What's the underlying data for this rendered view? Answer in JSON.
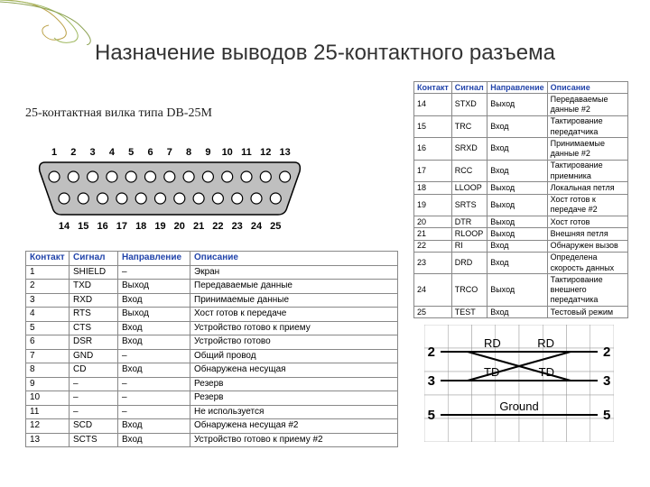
{
  "title": "Назначение выводов 25-контактного разъема",
  "subtitle": "25-контактная вилка типа DB-25M",
  "headers": {
    "pin": "Контакт",
    "sig": "Сигнал",
    "dir": "Направление",
    "desc": "Описание"
  },
  "left_rows": [
    {
      "pin": "1",
      "sig": "SHIELD",
      "dir": "–",
      "desc": "Экран"
    },
    {
      "pin": "2",
      "sig": "TXD",
      "dir": "Выход",
      "desc": "Передаваемые данные"
    },
    {
      "pin": "3",
      "sig": "RXD",
      "dir": "Вход",
      "desc": "Принимаемые данные"
    },
    {
      "pin": "4",
      "sig": "RTS",
      "dir": "Выход",
      "desc": "Хост готов к передаче"
    },
    {
      "pin": "5",
      "sig": "CTS",
      "dir": "Вход",
      "desc": "Устройство готово к приему"
    },
    {
      "pin": "6",
      "sig": "DSR",
      "dir": "Вход",
      "desc": "Устройство готово"
    },
    {
      "pin": "7",
      "sig": "GND",
      "dir": "–",
      "desc": "Общий провод"
    },
    {
      "pin": "8",
      "sig": "CD",
      "dir": "Вход",
      "desc": "Обнаружена несущая"
    },
    {
      "pin": "9",
      "sig": "–",
      "dir": "–",
      "desc": "Резерв"
    },
    {
      "pin": "10",
      "sig": "–",
      "dir": "–",
      "desc": "Резерв"
    },
    {
      "pin": "11",
      "sig": "–",
      "dir": "–",
      "desc": "Не используется"
    },
    {
      "pin": "12",
      "sig": "SCD",
      "dir": "Вход",
      "desc": "Обнаружена несущая #2"
    },
    {
      "pin": "13",
      "sig": "SCTS",
      "dir": "Вход",
      "desc": "Устройство готово к приему #2"
    }
  ],
  "right_rows": [
    {
      "pin": "14",
      "sig": "STXD",
      "dir": "Выход",
      "desc": "Передаваемые данные #2"
    },
    {
      "pin": "15",
      "sig": "TRC",
      "dir": "Вход",
      "desc": "Тактирование передатчика"
    },
    {
      "pin": "16",
      "sig": "SRXD",
      "dir": "Вход",
      "desc": "Принимаемые данные #2"
    },
    {
      "pin": "17",
      "sig": "RCC",
      "dir": "Вход",
      "desc": "Тактирование приемника"
    },
    {
      "pin": "18",
      "sig": "LLOOP",
      "dir": "Выход",
      "desc": "Локальная петля"
    },
    {
      "pin": "19",
      "sig": "SRTS",
      "dir": "Выход",
      "desc": "Хост готов к передаче #2"
    },
    {
      "pin": "20",
      "sig": "DTR",
      "dir": "Выход",
      "desc": "Хост готов"
    },
    {
      "pin": "21",
      "sig": "RLOOP",
      "dir": "Выход",
      "desc": "Внешняя петля"
    },
    {
      "pin": "22",
      "sig": "RI",
      "dir": "Вход",
      "desc": "Обнаружен вызов"
    },
    {
      "pin": "23",
      "sig": "DRD",
      "dir": "Вход",
      "desc": "Определена скорость данных"
    },
    {
      "pin": "24",
      "sig": "TRCO",
      "dir": "Выход",
      "desc": "Тактирование внешнего передатчика"
    },
    {
      "pin": "25",
      "sig": "TEST",
      "dir": "Вход",
      "desc": "Тестовый режим"
    }
  ],
  "connector": {
    "top_pins": [
      "1",
      "2",
      "3",
      "4",
      "5",
      "6",
      "7",
      "8",
      "9",
      "10",
      "11",
      "12",
      "13"
    ],
    "bottom_pins": [
      "14",
      "15",
      "16",
      "17",
      "18",
      "19",
      "20",
      "21",
      "22",
      "23",
      "24",
      "25"
    ],
    "shell_fill": "#bfbfbf",
    "shell_stroke": "#000000",
    "pin_fill": "#ffffff",
    "pin_stroke": "#000000"
  },
  "null_modem": {
    "left_pins": [
      "2",
      "3",
      "5"
    ],
    "right_pins": [
      "2",
      "3",
      "5"
    ],
    "labels": {
      "rd": "RD",
      "td": "TD",
      "gnd": "Ground"
    }
  },
  "colors": {
    "header_text": "#2244aa",
    "border": "#888888",
    "bg": "#ffffff"
  }
}
